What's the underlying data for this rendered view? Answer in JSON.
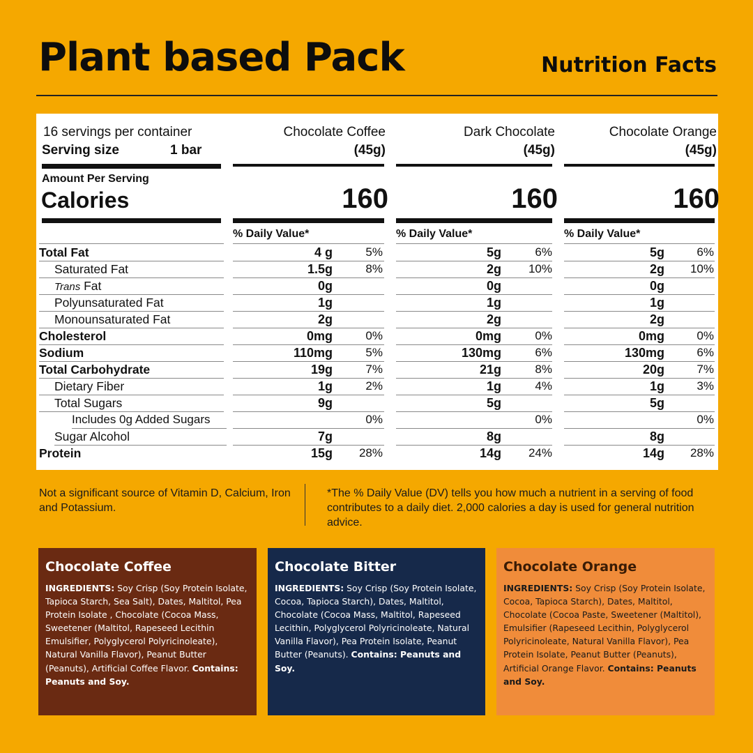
{
  "header": {
    "title": "Plant based Pack",
    "subtitle": "Nutrition Facts"
  },
  "label": {
    "servings_per_container": "16 servings per container",
    "serving_size_label": "Serving size",
    "serving_size_value": "1 bar",
    "amount_per_serving": "Amount Per Serving",
    "calories_label": "Calories",
    "daily_value_header": "% Daily Value*",
    "nutrients": [
      "Total Fat",
      "Saturated Fat",
      "Trans",
      " Fat",
      "Polyunsaturated Fat",
      "Monounsaturated Fat",
      "Cholesterol",
      "Sodium",
      "Total Carbohydrate",
      "Dietary Fiber",
      "Total Sugars",
      "Includes 0g Added Sugars",
      "Sugar Alcohol",
      "Protein"
    ],
    "products": [
      {
        "name": "Chocolate Coffee",
        "weight": "(45g)",
        "calories": "160",
        "amounts": [
          "4 g",
          "1.5g",
          "0g",
          "1g",
          "2g",
          "0mg",
          "110mg",
          "19g",
          "1g",
          "9g",
          "",
          "7g",
          "15g"
        ],
        "percents": [
          "5%",
          "8%",
          "",
          "",
          "",
          "0%",
          "5%",
          "7%",
          "2%",
          "",
          "0%",
          "",
          "28%"
        ]
      },
      {
        "name": "Dark Chocolate",
        "weight": "(45g)",
        "calories": "160",
        "amounts": [
          "5g",
          "2g",
          "0g",
          "1g",
          "2g",
          "0mg",
          "130mg",
          "21g",
          "1g",
          "5g",
          "",
          "8g",
          "14g"
        ],
        "percents": [
          "6%",
          "10%",
          "",
          "",
          "",
          "0%",
          "6%",
          "8%",
          "4%",
          "",
          "0%",
          "",
          "24%"
        ]
      },
      {
        "name": "Chocolate Orange",
        "weight": "(45g)",
        "calories": "160",
        "amounts": [
          "5g",
          "2g",
          "0g",
          "1g",
          "2g",
          "0mg",
          "130mg",
          "20g",
          "1g",
          "5g",
          "",
          "8g",
          "14g"
        ],
        "percents": [
          "6%",
          "10%",
          "",
          "",
          "",
          "0%",
          "6%",
          "7%",
          "3%",
          "",
          "0%",
          "",
          "28%"
        ]
      }
    ]
  },
  "footnotes": {
    "left": "Not a significant source of Vitamin D, Calcium, Iron and Potassium.",
    "right": "*The % Daily Value (DV) tells you how much a nutrient in a serving of food contributes to a daily diet. 2,000 calories a day is used for general nutrition advice."
  },
  "ingredients": [
    {
      "title": "Chocolate Coffee",
      "label": "INGREDIENTS:",
      "text": " Soy Crisp (Soy Protein Isolate, Tapioca Starch, Sea Salt), Dates, Maltitol, Pea Protein Isolate , Chocolate (Cocoa Mass, Sweetener (Maltitol, Rapeseed Lecithin Emulsifier, Polyglycerol Polyricinoleate), Natural Vanilla Flavor), Peanut Butter (Peanuts), Artificial Coffee Flavor. ",
      "contains": "Contains: Peanuts and Soy."
    },
    {
      "title": "Chocolate Bitter",
      "label": "INGREDIENTS:",
      "text": " Soy Crisp (Soy Protein Isolate, Cocoa, Tapioca Starch), Dates, Maltitol, Chocolate (Cocoa Mass, Maltitol, Rapeseed Lecithin, Polyglycerol Polyricinoleate, Natural Vanilla Flavor), Pea Protein Isolate, Peanut Butter (Peanuts). ",
      "contains": "Contains: Peanuts and Soy."
    },
    {
      "title": "Chocolate Orange",
      "label": "INGREDIENTS:",
      "text": " Soy Crisp (Soy Protein Isolate, Cocoa, Tapioca Starch), Dates, Maltitol, Chocolate (Cocoa Paste, Sweetener (Maltitol), Emulsifier (Rapeseed Lecithin, Polyglycerol Polyricinoleate, Natural Vanilla Flavor), Pea Protein Isolate, Peanut Butter (Peanuts), Artificial Orange Flavor. ",
      "contains": "Contains: Peanuts and Soy."
    }
  ]
}
